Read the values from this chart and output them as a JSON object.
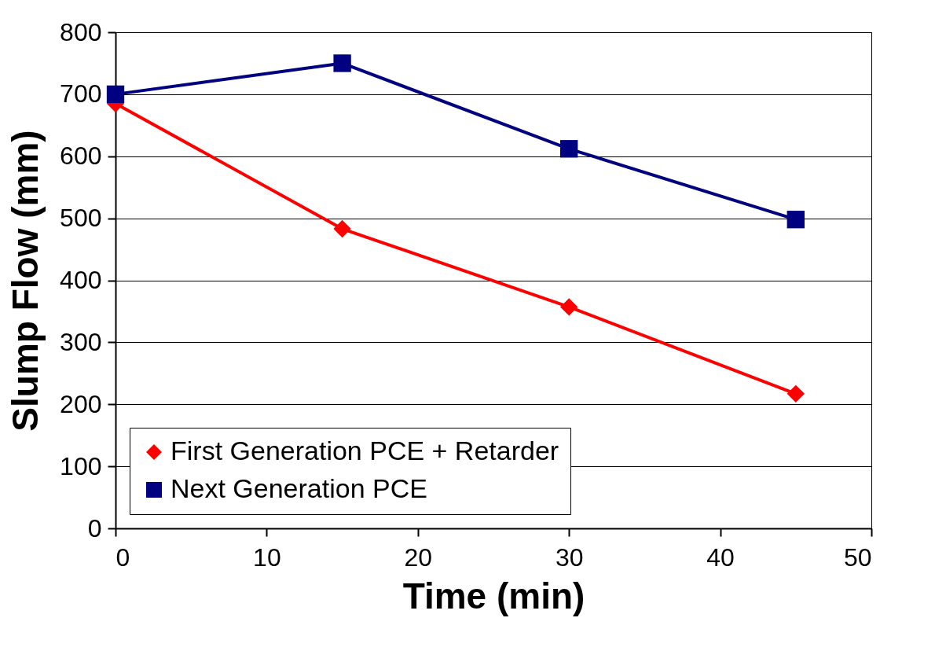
{
  "chart_data": {
    "type": "line",
    "xlabel": "Time (min)",
    "ylabel": "Slump Flow (mm)",
    "x": [
      0,
      15,
      30,
      45
    ],
    "series": [
      {
        "name": "First Generation PCE + Retarder",
        "color": "#ff0000",
        "marker": "diamond",
        "values": [
          685,
          483,
          357,
          217
        ]
      },
      {
        "name": "Next Generation PCE",
        "color": "#000080",
        "marker": "square",
        "values": [
          700,
          750,
          612,
          498
        ]
      }
    ],
    "xlim": [
      0,
      50
    ],
    "xticks": [
      0,
      10,
      20,
      30,
      40,
      50
    ],
    "ylim": [
      0,
      800
    ],
    "yticks": [
      0,
      100,
      200,
      300,
      400,
      500,
      600,
      700,
      800
    ],
    "grid": "y",
    "legend": "bottom left",
    "line_style": "solid"
  }
}
